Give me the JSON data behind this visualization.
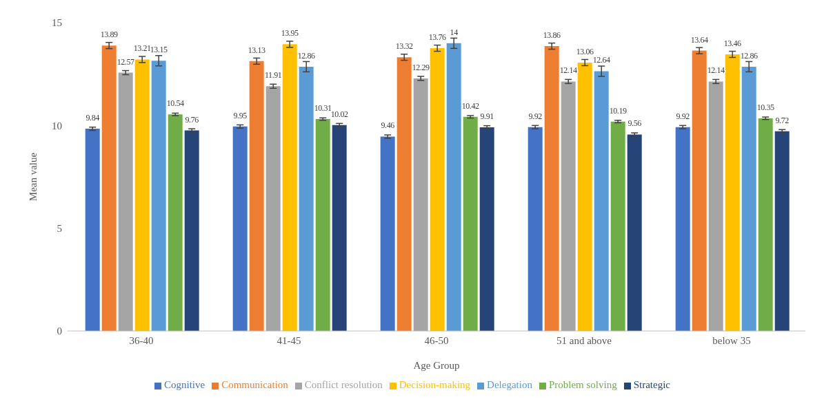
{
  "chart_data": {
    "type": "bar",
    "xlabel": "Age Group",
    "ylabel": "Mean value",
    "categories": [
      "36-40",
      "41-45",
      "46-50",
      "51 and above",
      "below 35"
    ],
    "series": [
      {
        "name": "Cognitive",
        "color": "#4472c4",
        "values": [
          9.84,
          9.95,
          9.46,
          9.92,
          9.92
        ],
        "errors": [
          0.08,
          0.08,
          0.08,
          0.08,
          0.08
        ]
      },
      {
        "name": "Communication",
        "color": "#ed7d31",
        "values": [
          13.89,
          13.13,
          13.32,
          13.86,
          13.64
        ],
        "errors": [
          0.15,
          0.15,
          0.15,
          0.15,
          0.15
        ]
      },
      {
        "name": "Conflict resolution",
        "color": "#a5a5a5",
        "values": [
          12.57,
          11.91,
          12.29,
          12.14,
          12.14
        ],
        "errors": [
          0.1,
          0.1,
          0.1,
          0.1,
          0.1
        ]
      },
      {
        "name": "Decision-making",
        "color": "#ffc000",
        "values": [
          13.21,
          13.95,
          13.76,
          13.06,
          13.46
        ],
        "errors": [
          0.15,
          0.15,
          0.15,
          0.15,
          0.15
        ]
      },
      {
        "name": "Delegation",
        "color": "#5b9bd5",
        "values": [
          13.15,
          12.86,
          14,
          12.64,
          12.86
        ],
        "errors": [
          0.25,
          0.25,
          0.25,
          0.25,
          0.25
        ]
      },
      {
        "name": "Problem solving",
        "color": "#70ad47",
        "values": [
          10.54,
          10.31,
          10.42,
          10.19,
          10.35
        ],
        "errors": [
          0.06,
          0.06,
          0.06,
          0.06,
          0.06
        ]
      },
      {
        "name": "Strategic",
        "color": "#264478",
        "values": [
          9.76,
          10.02,
          9.91,
          9.56,
          9.72
        ],
        "errors": [
          0.08,
          0.08,
          0.08,
          0.08,
          0.08
        ]
      }
    ],
    "ylim": [
      0,
      15
    ],
    "yticks": [
      0,
      5,
      10,
      15
    ],
    "grid": false,
    "legend": "bottom",
    "data_labels": true
  }
}
